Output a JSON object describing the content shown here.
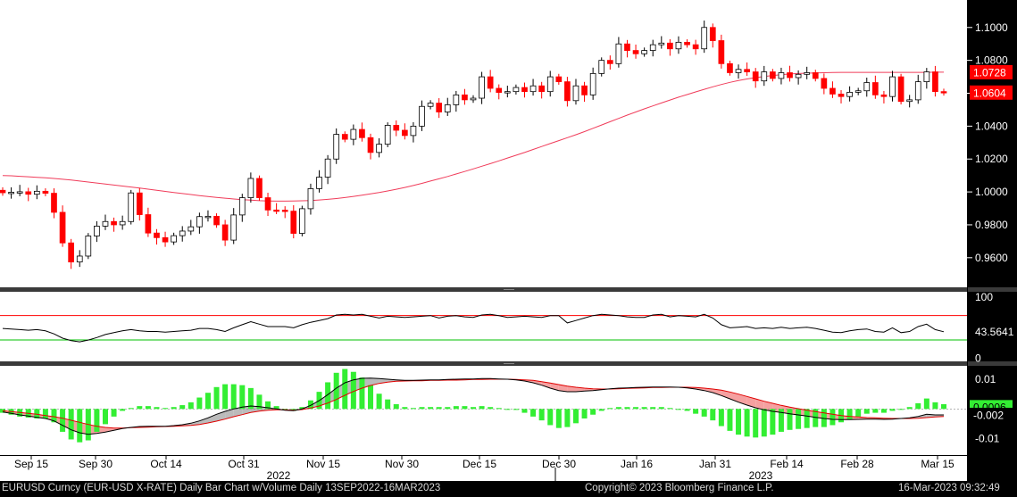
{
  "colors": {
    "background": "#000000",
    "plot_background": "#ffffff",
    "up_candle": "#ffffff",
    "down_candle": "#ff0000",
    "moving_average": "#f03c5a",
    "rsi_line": "#000000",
    "rsi_upper": "#ff0000",
    "rsi_lower": "#00c000",
    "macd_line": "#000000",
    "macd_signal": "#e00000",
    "macd_hist": "#33ee33",
    "macd_fill": "#bbbbbb",
    "panel_divider": "#3a3a3a"
  },
  "footer": {
    "left": "EURUSD Curncy (EUR-USD X-RATE) Daily Bar Chart w/Volume  Daily 13SEP2022-16MAR2023",
    "center": "Copyright© 2023 Bloomberg Finance L.P.",
    "right": "16-Mar-2023 09:32:49"
  },
  "chart_data": [
    {
      "type": "candlestick",
      "panel": "price",
      "y_ticks": [
        "1.1000",
        "1.0800",
        "1.0600",
        "1.0400",
        "1.0200",
        "1.0000",
        "0.9800",
        "0.9600"
      ],
      "ylim": [
        0.942,
        1.1167
      ],
      "x_labels": [
        "Sep 15",
        "Sep 30",
        "Oct 14",
        "Oct 31",
        "Nov 15",
        "Nov 30",
        "Dec 15",
        "Dec 30",
        "Jan 16",
        "Jan 31",
        "Feb 14",
        "Feb 28",
        "Mar 15"
      ],
      "year_labels": [
        "2022",
        "2023"
      ],
      "last_price_labels": [
        {
          "text": "1.0728",
          "value": 1.0728
        },
        {
          "text": "1.0604",
          "value": 1.0604
        }
      ],
      "closes": [
        0.9995,
        0.9998,
        1.0001,
        0.9986,
        1.0004,
        0.9992,
        0.9876,
        0.969,
        0.9574,
        0.961,
        0.9732,
        0.9792,
        0.982,
        0.98,
        0.982,
        0.9994,
        0.9862,
        0.975,
        0.9722,
        0.9696,
        0.9734,
        0.9762,
        0.9788,
        0.985,
        0.9852,
        0.98,
        0.9707,
        0.986,
        0.9965,
        1.0082,
        0.9965,
        0.989,
        0.9889,
        0.9883,
        0.9748,
        0.9898,
        1.002,
        1.009,
        1.02,
        1.035,
        1.032,
        1.038,
        1.033,
        1.024,
        1.029,
        1.0405,
        1.0375,
        1.0343,
        1.04,
        1.052,
        1.054,
        1.0486,
        1.053,
        1.059,
        1.056,
        1.057,
        1.07,
        1.063,
        1.0605,
        1.061,
        1.0635,
        1.061,
        1.0645,
        1.061,
        1.07,
        1.067,
        1.0555,
        1.0645,
        1.059,
        1.072,
        1.08,
        1.078,
        1.09,
        1.086,
        1.084,
        1.086,
        1.0895,
        1.0905,
        1.087,
        1.091,
        1.0895,
        1.087,
        1.1,
        1.092,
        1.078,
        1.0725,
        1.0745,
        1.073,
        1.0675,
        1.073,
        1.069,
        1.0725,
        1.0695,
        1.0715,
        1.0725,
        1.069,
        1.063,
        1.0595,
        1.058,
        1.0606,
        1.0615,
        1.0665,
        1.059,
        1.058,
        1.07,
        1.055,
        1.056,
        1.067,
        1.073,
        1.061,
        1.0604
      ],
      "ma_series": [
        1.01,
        1.0098,
        1.0095,
        1.0092,
        1.0089,
        1.0086,
        1.0082,
        1.0077,
        1.0072,
        1.0066,
        1.006,
        1.0054,
        1.0048,
        1.0042,
        1.0036,
        1.003,
        1.0024,
        1.0017,
        1.001,
        1.0003,
        0.9996,
        0.999,
        0.9984,
        0.9978,
        0.9972,
        0.9967,
        0.9962,
        0.9957,
        0.9953,
        0.995,
        0.9947,
        0.9945,
        0.9944,
        0.9944,
        0.9945,
        0.9946,
        0.9948,
        0.9951,
        0.9955,
        0.996,
        0.9966,
        0.9973,
        0.998,
        0.9988,
        0.9996,
        1.0006,
        1.0016,
        1.0027,
        1.0039,
        1.0052,
        1.0066,
        1.008,
        1.0094,
        1.0109,
        1.0124,
        1.014,
        1.0156,
        1.0172,
        1.0189,
        1.0206,
        1.0223,
        1.024,
        1.0258,
        1.0276,
        1.0294,
        1.0312,
        1.033,
        1.0348,
        1.0367,
        1.0387,
        1.0407,
        1.0427,
        1.0447,
        1.0467,
        1.0486,
        1.0505,
        1.0523,
        1.0541,
        1.0559,
        1.0576,
        1.0592,
        1.0608,
        1.0624,
        1.0639,
        1.0653,
        1.0666,
        1.0677,
        1.0687,
        1.0695,
        1.0702,
        1.0708,
        1.0713,
        1.0717,
        1.072,
        1.0722,
        1.0724,
        1.0725,
        1.0726,
        1.0727,
        1.0727,
        1.0727,
        1.0727,
        1.0727,
        1.0727,
        1.0727,
        1.0727,
        1.0727,
        1.0727,
        1.0727,
        1.0728,
        1.0728
      ]
    },
    {
      "type": "line",
      "panel": "rsi",
      "y_ticks": [
        "100",
        "43.5641",
        "0"
      ],
      "ylim": [
        -5,
        109
      ],
      "levels": [
        70,
        30
      ],
      "last_value": 43.5641,
      "values": [
        49,
        48,
        47,
        46,
        47,
        45,
        40,
        33,
        29,
        27,
        30,
        34,
        39,
        42,
        45,
        47,
        45,
        44,
        44,
        43,
        44,
        45,
        46,
        49,
        49,
        47,
        44,
        50,
        55,
        60,
        56,
        52,
        52,
        52,
        50,
        55,
        59,
        62,
        65,
        71,
        72,
        71,
        72,
        69,
        66,
        69,
        68,
        67,
        68,
        69,
        70,
        66,
        69,
        70,
        68,
        67,
        71,
        72,
        70,
        67,
        68,
        69,
        68,
        67,
        70,
        70,
        58,
        62,
        66,
        70,
        72,
        71,
        70,
        68,
        67,
        67,
        71,
        72,
        68,
        70,
        69,
        68,
        72,
        66,
        55,
        50,
        51,
        52,
        49,
        50,
        49,
        51,
        49,
        50,
        51,
        49,
        46,
        43,
        42,
        45,
        47,
        48,
        44,
        43,
        50,
        42,
        44,
        52,
        56,
        47,
        43.5641
      ]
    },
    {
      "type": "line",
      "panel": "macd",
      "y_ticks": [
        "0.01",
        "-0.002",
        "-0.01"
      ],
      "ylim": [
        -0.0155,
        0.0145
      ],
      "last_value_label": "-0.002",
      "hidden_value_label": "0.0006",
      "macd": [
        -0.001,
        -0.0015,
        -0.002,
        -0.0024,
        -0.0028,
        -0.0032,
        -0.004,
        -0.0055,
        -0.007,
        -0.008,
        -0.0085,
        -0.0082,
        -0.0078,
        -0.0072,
        -0.0066,
        -0.0062,
        -0.0059,
        -0.0058,
        -0.0058,
        -0.0058,
        -0.0056,
        -0.0053,
        -0.0048,
        -0.004,
        -0.003,
        -0.0018,
        -0.0008,
        0.0,
        0.0006,
        0.001,
        0.0008,
        0.0004,
        0.0,
        -0.0004,
        -0.0006,
        0.0,
        0.0012,
        0.0028,
        0.0048,
        0.007,
        0.0088,
        0.0098,
        0.0103,
        0.0104,
        0.0102,
        0.01,
        0.0098,
        0.0096,
        0.0096,
        0.0097,
        0.0098,
        0.0098,
        0.0099,
        0.01,
        0.0101,
        0.0101,
        0.0102,
        0.0102,
        0.0101,
        0.01,
        0.0098,
        0.0094,
        0.0088,
        0.008,
        0.007,
        0.0062,
        0.0058,
        0.0058,
        0.006,
        0.0062,
        0.0065,
        0.0068,
        0.007,
        0.0071,
        0.0072,
        0.0073,
        0.0074,
        0.0074,
        0.0074,
        0.0073,
        0.0071,
        0.0067,
        0.0062,
        0.0055,
        0.0045,
        0.0034,
        0.0023,
        0.0013,
        0.0004,
        -0.0003,
        -0.0008,
        -0.0012,
        -0.0016,
        -0.002,
        -0.0024,
        -0.0028,
        -0.0032,
        -0.0035,
        -0.0036,
        -0.0036,
        -0.0035,
        -0.0034,
        -0.0034,
        -0.0035,
        -0.0034,
        -0.0032,
        -0.003,
        -0.0025,
        -0.0018,
        -0.002,
        -0.002
      ],
      "signal": [
        -0.0006,
        -0.0009,
        -0.0012,
        -0.0015,
        -0.0018,
        -0.0022,
        -0.0026,
        -0.0031,
        -0.0038,
        -0.0045,
        -0.0052,
        -0.0058,
        -0.0062,
        -0.0064,
        -0.0064,
        -0.0063,
        -0.0062,
        -0.0061,
        -0.006,
        -0.0059,
        -0.0058,
        -0.0057,
        -0.0055,
        -0.0052,
        -0.0047,
        -0.0041,
        -0.0034,
        -0.0026,
        -0.0019,
        -0.0012,
        -0.0007,
        -0.0004,
        -0.0003,
        -0.0003,
        -0.0004,
        -0.0002,
        0.0003,
        0.001,
        0.002,
        0.0032,
        0.0046,
        0.0059,
        0.007,
        0.0079,
        0.0086,
        0.009,
        0.0093,
        0.0094,
        0.0095,
        0.0095,
        0.0096,
        0.0096,
        0.0097,
        0.0097,
        0.0098,
        0.0099,
        0.0099,
        0.01,
        0.01,
        0.01,
        0.0099,
        0.0098,
        0.0096,
        0.0092,
        0.0087,
        0.0082,
        0.0077,
        0.0073,
        0.007,
        0.0068,
        0.0067,
        0.0067,
        0.0068,
        0.0069,
        0.007,
        0.0071,
        0.0072,
        0.0072,
        0.0073,
        0.0073,
        0.0073,
        0.0072,
        0.007,
        0.0067,
        0.0063,
        0.0057,
        0.005,
        0.0042,
        0.0034,
        0.0026,
        0.0019,
        0.0012,
        0.0006,
        0.0001,
        -0.0004,
        -0.0009,
        -0.0013,
        -0.0018,
        -0.0022,
        -0.0025,
        -0.0027,
        -0.0029,
        -0.003,
        -0.0031,
        -0.0032,
        -0.0032,
        -0.0032,
        -0.0031,
        -0.0029,
        -0.0027,
        -0.0025
      ]
    }
  ]
}
